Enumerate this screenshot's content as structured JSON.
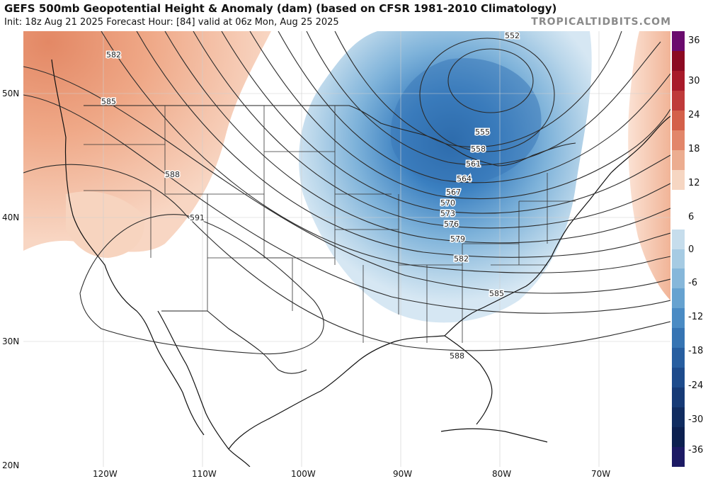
{
  "header": {
    "title": "GEFS 500mb Geopotential Height & Anomaly (dam) (based on CFSR 1981-2010 Climatology)",
    "subtitle": "Init: 18z Aug 21 2025   Forecast Hour: [84]   valid at 06z Mon, Aug 25 2025",
    "brand": "TROPICALTIDBITS.COM"
  },
  "axes": {
    "lat_labels": [
      "50N",
      "40N",
      "30N",
      "20N"
    ],
    "lon_labels": [
      "120W",
      "110W",
      "100W",
      "90W",
      "80W",
      "70W"
    ]
  },
  "contours": {
    "labels": [
      "552",
      "555",
      "558",
      "561",
      "564",
      "567",
      "570",
      "573",
      "576",
      "579",
      "582",
      "585",
      "588",
      "582",
      "585",
      "588",
      "591"
    ]
  },
  "colorbar": {
    "labels": [
      "36",
      "30",
      "24",
      "18",
      "12",
      "6",
      "0",
      "-6",
      "-12",
      "-18",
      "-24",
      "-30",
      "-36"
    ],
    "colors": [
      "#6a0a6e",
      "#8c0a22",
      "#a81a2a",
      "#bf3a3a",
      "#d4604a",
      "#e2866a",
      "#ecad90",
      "#f6d6c2",
      "#ffffff",
      "#ffffff",
      "#c6ddec",
      "#a6cbe3",
      "#86b7da",
      "#66a2d0",
      "#4a8bc4",
      "#3674b3",
      "#275ea0",
      "#1d4b8c",
      "#163a76",
      "#102c60",
      "#0c2050",
      "#1c1a64"
    ]
  },
  "colors": {
    "warm_anomaly": "#efa887",
    "cold_anomaly": "#5a9bd0",
    "contour": "#2b2b2b",
    "boundary": "#111111"
  }
}
